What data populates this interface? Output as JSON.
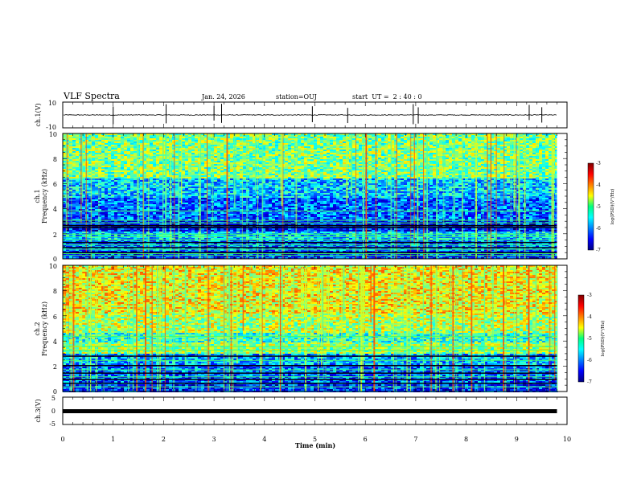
{
  "header": {
    "title": "VLF Spectra",
    "date": "Jan. 24, 2026",
    "station": "station=OUJ",
    "start": "start  UT =  2 : 40 : 0"
  },
  "chart_data": [
    {
      "type": "line",
      "name": "ch1-waveform",
      "ylabel": "ch.1(V)",
      "ylim": [
        -10,
        10
      ],
      "yticks": [
        "10",
        "-10"
      ],
      "baseline": 0,
      "noise_amplitude": 1.2,
      "spike_times_min": [
        1.0,
        2.05,
        3.0,
        3.15,
        4.95,
        5.65,
        6.95,
        7.05,
        9.25,
        9.5
      ]
    },
    {
      "type": "heatmap",
      "name": "ch1-spectrogram",
      "title": "ch.1",
      "ylabel": "Frequency (kHz)",
      "ylim": [
        0,
        10
      ],
      "yticks": [
        "0",
        "2",
        "4",
        "6",
        "8",
        "10"
      ],
      "xlim": [
        0,
        9.8
      ],
      "colorbar": {
        "label": "log(PSD)(V²/Hz)",
        "range": [
          -7,
          -3
        ],
        "ticks": [
          "-3",
          "-4",
          "-5",
          "-6",
          "-7"
        ]
      },
      "band_profile": [
        {
          "f0": 0.0,
          "f1": 0.7,
          "level": -6.3
        },
        {
          "f0": 0.7,
          "f1": 1.6,
          "level": -6.0
        },
        {
          "f0": 1.6,
          "f1": 2.2,
          "level": -5.7
        },
        {
          "f0": 2.2,
          "f1": 3.2,
          "level": -6.4
        },
        {
          "f0": 3.2,
          "f1": 5.0,
          "level": -6.1
        },
        {
          "f0": 5.0,
          "f1": 6.5,
          "level": -5.7
        },
        {
          "f0": 6.5,
          "f1": 10.0,
          "level": -5.0
        }
      ],
      "lines_khz": [
        0.3,
        0.45,
        0.8,
        1.15,
        1.55,
        1.8,
        2.0,
        2.9,
        3.1,
        3.85
      ],
      "dark_lines_khz": [
        0.55,
        0.95,
        1.35,
        2.55,
        2.7
      ],
      "sferic_density": 0.45
    },
    {
      "type": "heatmap",
      "name": "ch2-spectrogram",
      "title": "ch.2",
      "ylabel": "Frequency (kHz)",
      "ylim": [
        0,
        10
      ],
      "yticks": [
        "0",
        "2",
        "4",
        "6",
        "8",
        "10"
      ],
      "xlim": [
        0,
        9.8
      ],
      "colorbar": {
        "label": "log(PSD)(V²/Hz)",
        "range": [
          -7,
          -3
        ],
        "ticks": [
          "-3",
          "-4",
          "-5",
          "-6",
          "-7"
        ]
      },
      "band_profile": [
        {
          "f0": 0.0,
          "f1": 0.6,
          "level": -6.3
        },
        {
          "f0": 0.6,
          "f1": 2.2,
          "level": -6.1
        },
        {
          "f0": 2.2,
          "f1": 3.0,
          "level": -5.8
        },
        {
          "f0": 3.0,
          "f1": 3.9,
          "level": -4.9
        },
        {
          "f0": 3.9,
          "f1": 4.7,
          "level": -5.3
        },
        {
          "f0": 4.7,
          "f1": 6.3,
          "level": -4.8
        },
        {
          "f0": 6.3,
          "f1": 10.0,
          "level": -4.5
        }
      ],
      "lines_khz": [
        0.4,
        1.2,
        1.75,
        2.5,
        3.3,
        3.6,
        4.4
      ],
      "dark_lines_khz": [
        0.7,
        1.0,
        1.5,
        2.1,
        2.85
      ],
      "sferic_density": 0.55
    },
    {
      "type": "line",
      "name": "ch3-waveform",
      "ylabel": "ch.3(V)",
      "ylim": [
        -5,
        5
      ],
      "yticks": [
        "5",
        "0",
        "-5"
      ],
      "baseline": -1.0,
      "noise_amplitude": 0.3
    }
  ],
  "time_axis": {
    "xlabel": "Time (min)",
    "xlim": [
      0,
      10
    ],
    "ticks": [
      "0",
      "1",
      "2",
      "3",
      "4",
      "5",
      "6",
      "7",
      "8",
      "9",
      "10"
    ],
    "data_end_min": 9.8
  }
}
